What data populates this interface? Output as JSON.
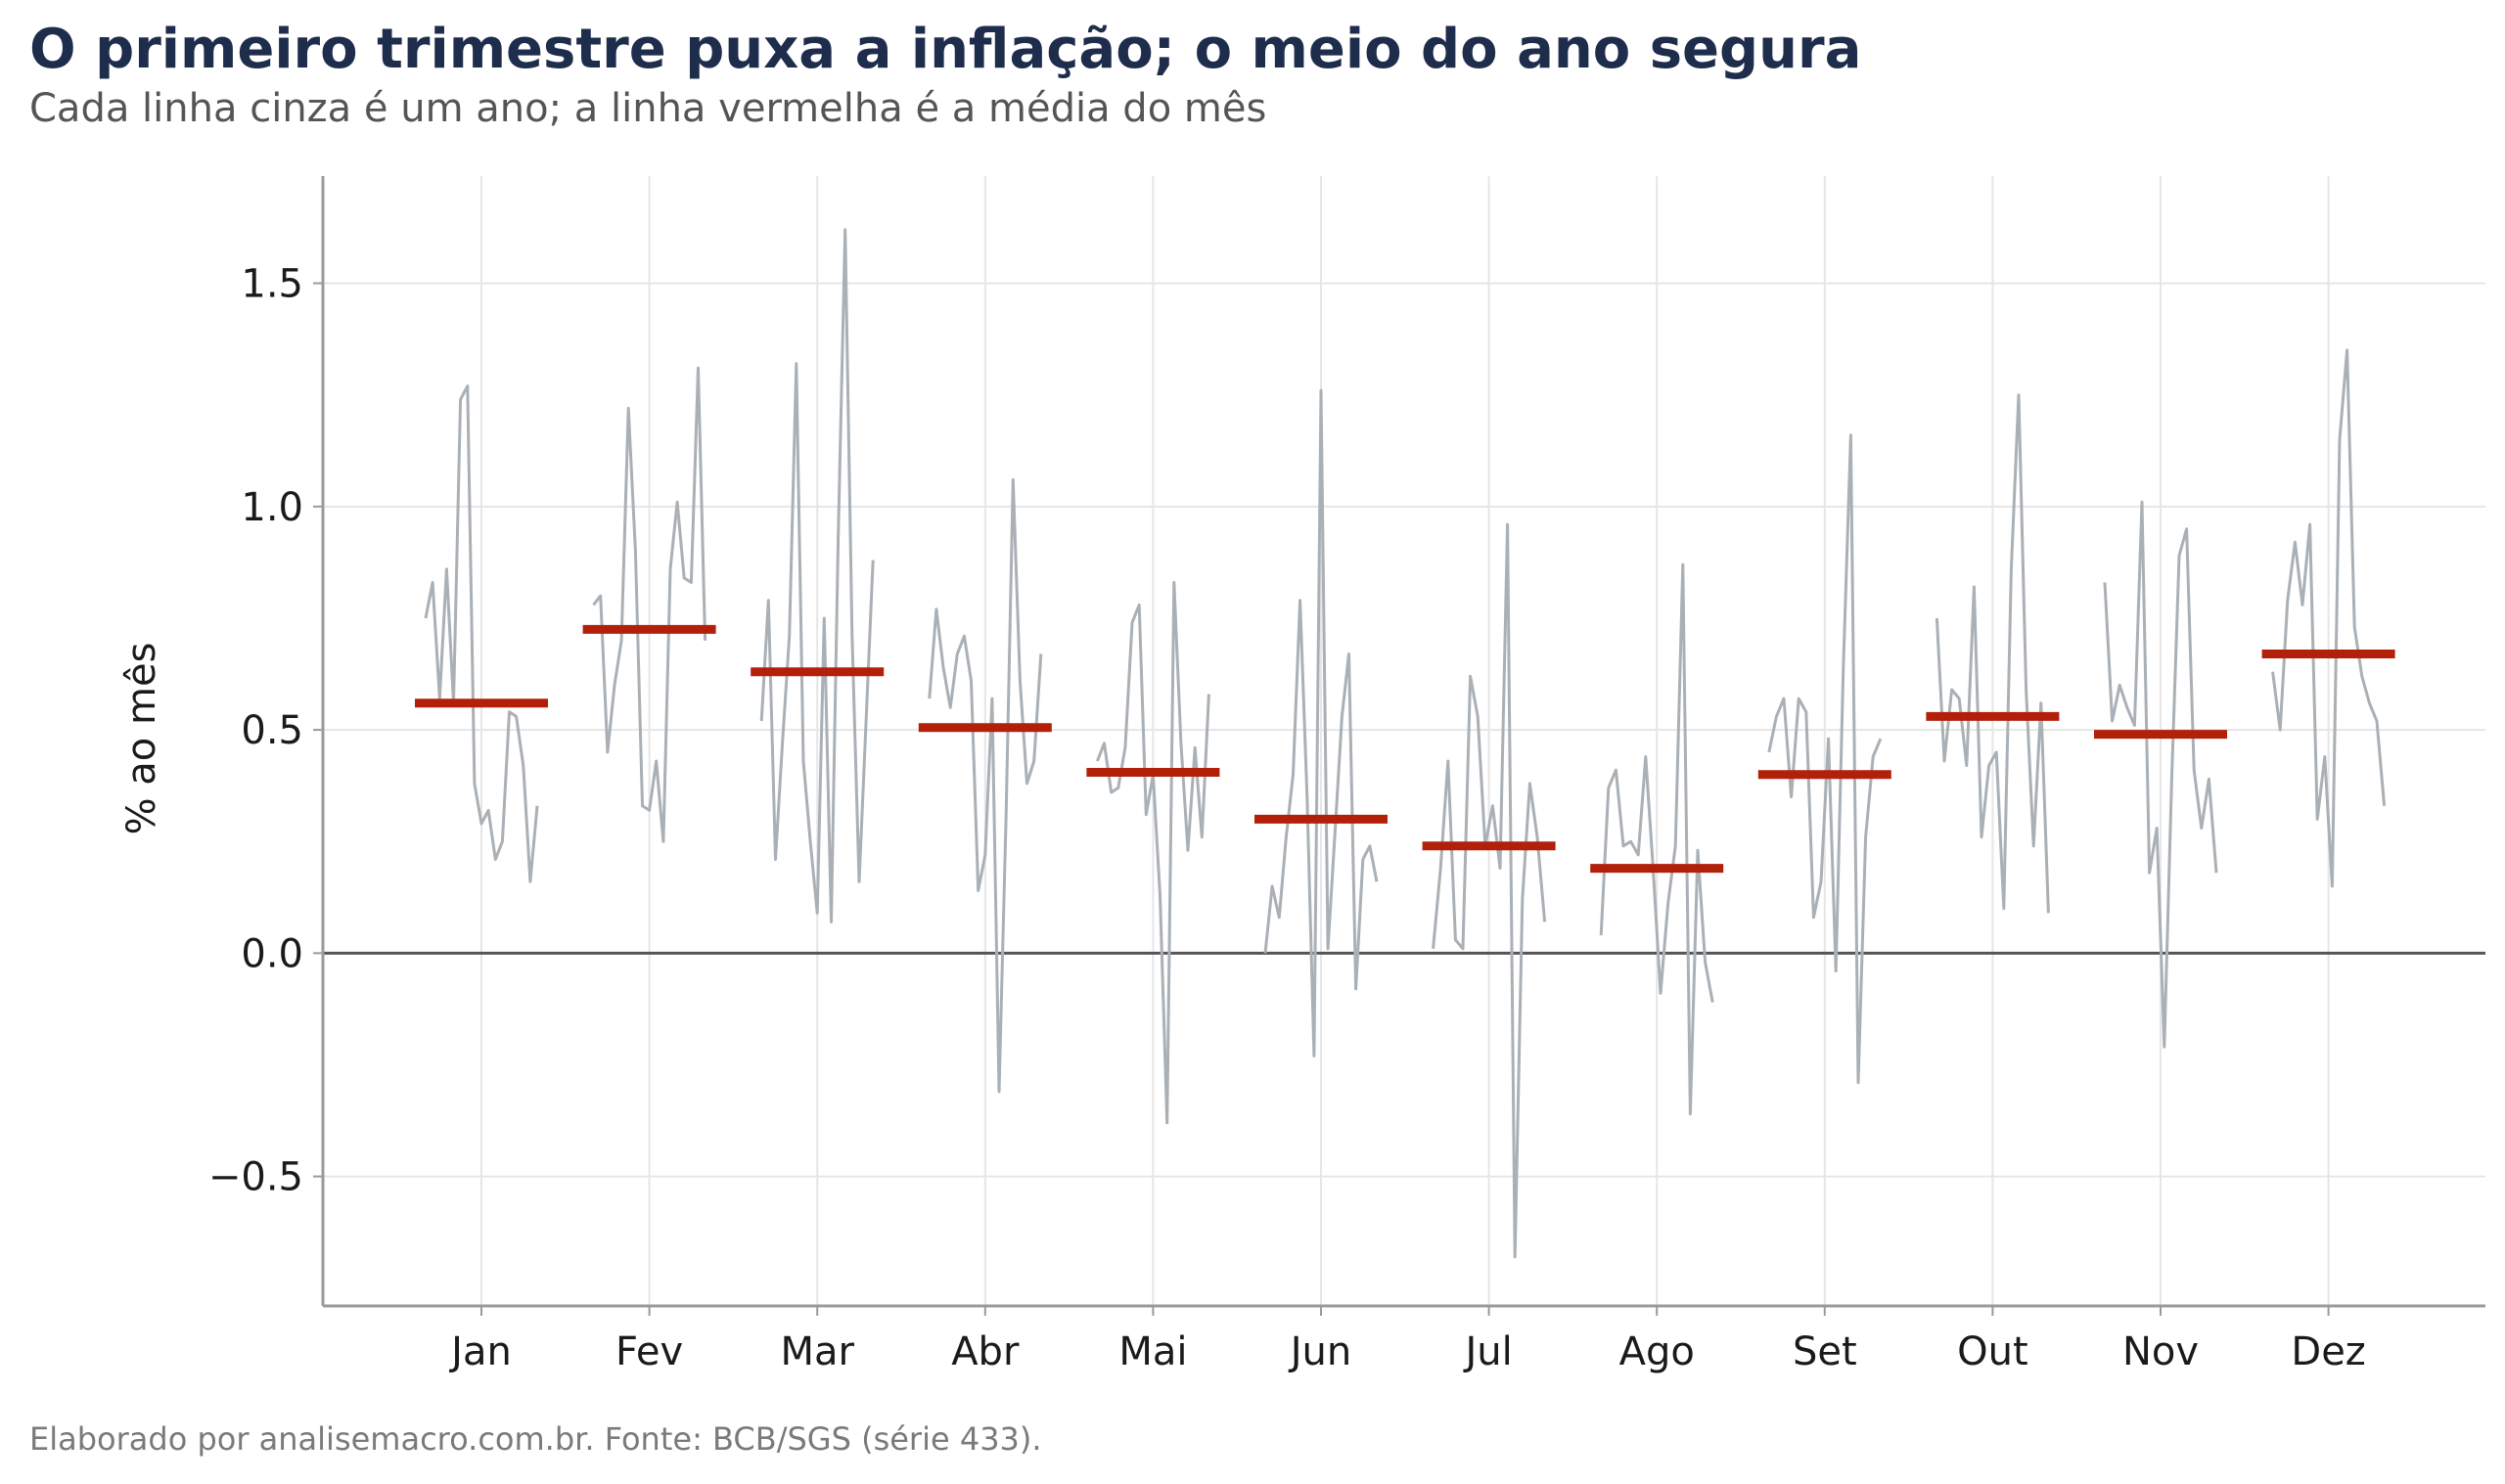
{
  "title": "O primeiro trimestre puxa a inflação; o meio do ano segura",
  "subtitle": "Cada linha cinza é um ano; a linha vermelha é a média do mês",
  "caption": "Elaborado por analisemacro.com.br. Fonte: BCB/SGS (série 433).",
  "colors": {
    "year_line": "#a9b0b6",
    "mean_line": "#b3200a",
    "grid": "#e6e6e6",
    "zero": "#555555",
    "axis": "#9a9a9a"
  },
  "chart_data": {
    "type": "line",
    "subtype": "cycle-plot",
    "ylabel": "% ao mês",
    "ylim": [
      -0.79,
      1.74
    ],
    "yticks": [
      1.5,
      1.0,
      0.5,
      0.0,
      -0.5
    ],
    "ytick_labels": [
      "1.5",
      "1.0",
      "0.5",
      "0.0",
      "−0.5"
    ],
    "categories": [
      "Jan",
      "Fev",
      "Mar",
      "Abr",
      "Mai",
      "Jun",
      "Jul",
      "Ago",
      "Set",
      "Out",
      "Nov",
      "Dez"
    ],
    "grid": true,
    "zero_line": true,
    "months": [
      {
        "label": "Jan",
        "mean": 0.56,
        "values": [
          0.75,
          0.83,
          0.57,
          0.86,
          0.56,
          1.24,
          1.27,
          0.38,
          0.29,
          0.32,
          0.21,
          0.25,
          0.54,
          0.53,
          0.42,
          0.16,
          0.33
        ]
      },
      {
        "label": "Fev",
        "mean": 0.725,
        "values": [
          0.78,
          0.8,
          0.45,
          0.6,
          0.7,
          1.22,
          0.9,
          0.33,
          0.32,
          0.43,
          0.25,
          0.86,
          1.01,
          0.84,
          0.83,
          1.31,
          0.7
        ]
      },
      {
        "label": "Mar",
        "mean": 0.63,
        "values": [
          0.52,
          0.79,
          0.21,
          0.47,
          0.71,
          1.32,
          0.43,
          0.25,
          0.09,
          0.75,
          0.07,
          0.93,
          1.62,
          0.71,
          0.16,
          0.52,
          0.88
        ]
      },
      {
        "label": "Abr",
        "mean": 0.505,
        "values": [
          0.57,
          0.77,
          0.64,
          0.55,
          0.67,
          0.71,
          0.61,
          0.14,
          0.22,
          0.57,
          -0.31,
          0.31,
          1.06,
          0.61,
          0.38,
          0.43,
          0.67
        ]
      },
      {
        "label": "Mai",
        "mean": 0.405,
        "values": [
          0.43,
          0.47,
          0.36,
          0.37,
          0.46,
          0.74,
          0.78,
          0.31,
          0.4,
          0.13,
          -0.38,
          0.83,
          0.47,
          0.23,
          0.46,
          0.26,
          0.58
        ]
      },
      {
        "label": "Jun",
        "mean": 0.3,
        "values": [
          0.0,
          0.15,
          0.08,
          0.26,
          0.4,
          0.79,
          0.35,
          -0.23,
          1.26,
          0.01,
          0.27,
          0.53,
          0.67,
          -0.08,
          0.21,
          0.24,
          0.16
        ]
      },
      {
        "label": "Jul",
        "mean": 0.24,
        "values": [
          0.01,
          0.19,
          0.43,
          0.03,
          0.01,
          0.62,
          0.53,
          0.24,
          0.33,
          0.19,
          0.96,
          -0.68,
          0.12,
          0.38,
          0.26,
          0.07
        ]
      },
      {
        "label": "Ago",
        "mean": 0.19,
        "values": [
          0.04,
          0.37,
          0.41,
          0.24,
          0.25,
          0.22,
          0.44,
          0.19,
          -0.09,
          0.11,
          0.24,
          0.87,
          -0.36,
          0.23,
          -0.02,
          -0.11
        ]
      },
      {
        "label": "Set",
        "mean": 0.4,
        "values": [
          0.45,
          0.53,
          0.57,
          0.35,
          0.57,
          0.54,
          0.08,
          0.16,
          0.48,
          -0.04,
          0.64,
          1.16,
          -0.29,
          0.26,
          0.44,
          0.48
        ]
      },
      {
        "label": "Out",
        "mean": 0.53,
        "values": [
          0.75,
          0.43,
          0.59,
          0.57,
          0.42,
          0.82,
          0.26,
          0.42,
          0.45,
          0.1,
          0.86,
          1.25,
          0.59,
          0.24,
          0.56,
          0.09
        ]
      },
      {
        "label": "Nov",
        "mean": 0.49,
        "values": [
          0.83,
          0.52,
          0.6,
          0.55,
          0.51,
          1.01,
          0.18,
          0.28,
          -0.21,
          0.39,
          0.89,
          0.95,
          0.41,
          0.28,
          0.39,
          0.18
        ]
      },
      {
        "label": "Dez",
        "mean": 0.67,
        "values": [
          0.63,
          0.5,
          0.79,
          0.92,
          0.78,
          0.96,
          0.3,
          0.44,
          0.15,
          1.15,
          1.35,
          0.73,
          0.62,
          0.56,
          0.52,
          0.33
        ]
      }
    ]
  }
}
